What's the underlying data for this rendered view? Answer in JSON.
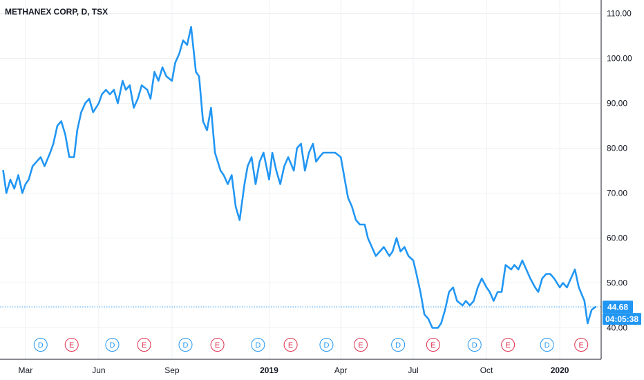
{
  "chart_data": {
    "type": "line",
    "title": "METHANEX CORP, D, TSX",
    "ylim": [
      33,
      113
    ],
    "yticks": [
      40,
      50,
      60,
      70,
      80,
      90,
      100,
      110
    ],
    "ytick_labels": [
      "40.00",
      "50.00",
      "60.00",
      "70.00",
      "80.00",
      "90.00",
      "100.00",
      "110.00"
    ],
    "xticks": [
      {
        "label": "Mar",
        "date": "2018-03-01",
        "bold": false
      },
      {
        "label": "Jun",
        "date": "2018-06-01",
        "bold": false
      },
      {
        "label": "Sep",
        "date": "2018-09-01",
        "bold": false
      },
      {
        "label": "2019",
        "date": "2019-01-01",
        "bold": true
      },
      {
        "label": "Apr",
        "date": "2019-04-01",
        "bold": false
      },
      {
        "label": "Jul",
        "date": "2019-07-01",
        "bold": false
      },
      {
        "label": "Oct",
        "date": "2019-10-01",
        "bold": false
      },
      {
        "label": "2020",
        "date": "2020-01-01",
        "bold": true
      }
    ],
    "xlim": [
      "2018-01-28",
      "2020-02-22"
    ],
    "line_color": "#2196f3",
    "last_price": 44.68,
    "last_price_label": "44.68",
    "countdown_label": "04:05:38",
    "series": [
      {
        "x": [
          "2018-02-01",
          "2018-02-05",
          "2018-02-10",
          "2018-02-15",
          "2018-02-20",
          "2018-02-25",
          "2018-03-01",
          "2018-03-05",
          "2018-03-10",
          "2018-03-15",
          "2018-03-20",
          "2018-03-25",
          "2018-04-01",
          "2018-04-05",
          "2018-04-10",
          "2018-04-15",
          "2018-04-20",
          "2018-04-25",
          "2018-05-01",
          "2018-05-05",
          "2018-05-10",
          "2018-05-15",
          "2018-05-20",
          "2018-05-25",
          "2018-06-01",
          "2018-06-05",
          "2018-06-10",
          "2018-06-15",
          "2018-06-20",
          "2018-06-25",
          "2018-07-01",
          "2018-07-05",
          "2018-07-10",
          "2018-07-15",
          "2018-07-20",
          "2018-07-25",
          "2018-08-01",
          "2018-08-05",
          "2018-08-10",
          "2018-08-15",
          "2018-08-20",
          "2018-08-25",
          "2018-09-01",
          "2018-09-05",
          "2018-09-10",
          "2018-09-15",
          "2018-09-20",
          "2018-09-25",
          "2018-10-01",
          "2018-10-05",
          "2018-10-10",
          "2018-10-15",
          "2018-10-20",
          "2018-10-25",
          "2018-11-01",
          "2018-11-05",
          "2018-11-10",
          "2018-11-15",
          "2018-11-20",
          "2018-11-25",
          "2018-12-01",
          "2018-12-05",
          "2018-12-10",
          "2018-12-15",
          "2018-12-20",
          "2018-12-25",
          "2019-01-01",
          "2019-01-05",
          "2019-01-10",
          "2019-01-15",
          "2019-01-20",
          "2019-01-25",
          "2019-02-01",
          "2019-02-05",
          "2019-02-10",
          "2019-02-15",
          "2019-02-20",
          "2019-02-25",
          "2019-03-01",
          "2019-03-05",
          "2019-03-10",
          "2019-03-15",
          "2019-03-20",
          "2019-03-25",
          "2019-04-01",
          "2019-04-05",
          "2019-04-10",
          "2019-04-15",
          "2019-04-20",
          "2019-04-25",
          "2019-05-01",
          "2019-05-05",
          "2019-05-10",
          "2019-05-15",
          "2019-05-20",
          "2019-05-25",
          "2019-06-01",
          "2019-06-05",
          "2019-06-10",
          "2019-06-15",
          "2019-06-20",
          "2019-06-25",
          "2019-07-01",
          "2019-07-05",
          "2019-07-10",
          "2019-07-15",
          "2019-07-20",
          "2019-07-25",
          "2019-08-01",
          "2019-08-05",
          "2019-08-10",
          "2019-08-15",
          "2019-08-20",
          "2019-08-25",
          "2019-09-01",
          "2019-09-05",
          "2019-09-10",
          "2019-09-15",
          "2019-09-20",
          "2019-09-25",
          "2019-10-01",
          "2019-10-05",
          "2019-10-10",
          "2019-10-15",
          "2019-10-20",
          "2019-10-25",
          "2019-11-01",
          "2019-11-05",
          "2019-11-10",
          "2019-11-15",
          "2019-11-20",
          "2019-11-25",
          "2019-12-01",
          "2019-12-05",
          "2019-12-10",
          "2019-12-15",
          "2019-12-20",
          "2019-12-25",
          "2020-01-01",
          "2020-01-05",
          "2020-01-10",
          "2020-01-15",
          "2020-01-20",
          "2020-01-25",
          "2020-02-01",
          "2020-02-05",
          "2020-02-10",
          "2020-02-15"
        ],
        "y": [
          75,
          70,
          73,
          71,
          74,
          70,
          72,
          73,
          76,
          77,
          78,
          76,
          79,
          81,
          85,
          86,
          83,
          78,
          78,
          84,
          88,
          90,
          91,
          88,
          90,
          92,
          93,
          92,
          93,
          90,
          95,
          93,
          94,
          89,
          91,
          94,
          93,
          91,
          97,
          95,
          98,
          96,
          95,
          99,
          101,
          104,
          103,
          107,
          97,
          96,
          86,
          84,
          89,
          79,
          75,
          74,
          72,
          74,
          67,
          64,
          72,
          76,
          78,
          72,
          77,
          79,
          73,
          79,
          75,
          72,
          76,
          78,
          75,
          80,
          81,
          75,
          79,
          81,
          77,
          78,
          79,
          79,
          79,
          79,
          78,
          74,
          69,
          67,
          64,
          63,
          63,
          60,
          58,
          56,
          57,
          58,
          56,
          57,
          60,
          57,
          58,
          56,
          55,
          52,
          48,
          43,
          42,
          40,
          40,
          41,
          44,
          48,
          49,
          46,
          45,
          46,
          45,
          46,
          49,
          51,
          49,
          48,
          46,
          48,
          48,
          54,
          53,
          54,
          53,
          55,
          53,
          51,
          49,
          48,
          51,
          52,
          52,
          51,
          49,
          50,
          49,
          51,
          53,
          49,
          46,
          41,
          44,
          44.68
        ]
      }
    ],
    "events": [
      {
        "label": "D",
        "date": "2018-03-20"
      },
      {
        "label": "E",
        "date": "2018-04-28"
      },
      {
        "label": "D",
        "date": "2018-06-18"
      },
      {
        "label": "E",
        "date": "2018-07-28"
      },
      {
        "label": "D",
        "date": "2018-09-18"
      },
      {
        "label": "E",
        "date": "2018-10-28"
      },
      {
        "label": "D",
        "date": "2018-12-18"
      },
      {
        "label": "E",
        "date": "2019-01-28"
      },
      {
        "label": "D",
        "date": "2019-03-14"
      },
      {
        "label": "E",
        "date": "2019-04-26"
      },
      {
        "label": "D",
        "date": "2019-06-12"
      },
      {
        "label": "E",
        "date": "2019-07-26"
      },
      {
        "label": "D",
        "date": "2019-09-16"
      },
      {
        "label": "E",
        "date": "2019-10-28"
      },
      {
        "label": "D",
        "date": "2019-12-16"
      },
      {
        "label": "E",
        "date": "2020-01-28"
      }
    ]
  },
  "colors": {
    "dividend": "#2196f3",
    "earnings": "#e0304c",
    "grid": "#eef0f3",
    "axis": "#131722",
    "price_badge": "#2196f3"
  }
}
